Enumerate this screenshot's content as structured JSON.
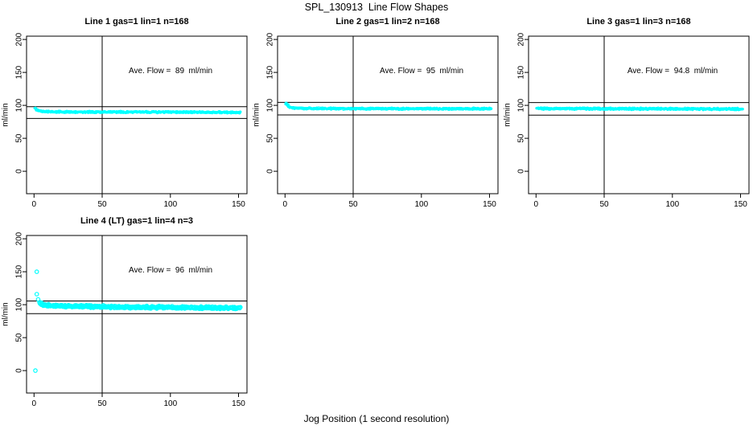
{
  "figure": {
    "title": "SPL_130913  Line Flow Shapes",
    "xlabel": "Jog Position (1 second resolution)",
    "background": "#ffffff",
    "point_color": "#00ffff",
    "axis_color": "#000000"
  },
  "chart_data": [
    {
      "type": "scatter",
      "title": "Line 1 gas=1 lin=1 n=168",
      "annotation": "Ave. Flow =  89  ml/min",
      "ave_flow_ml_min": 89,
      "n_traces": 168,
      "ylabel": "ml/min",
      "xlim": [
        -5.5,
        156.2
      ],
      "ylim": [
        -34,
        205
      ],
      "xticks": [
        0,
        50,
        100,
        150
      ],
      "yticks": [
        0,
        50,
        100,
        150,
        200
      ],
      "vline_x": 50,
      "hlines": [
        97.9,
        80.1
      ],
      "series_trend": [
        [
          1,
          95.5
        ],
        [
          2,
          93.5
        ],
        [
          3,
          92.3
        ],
        [
          5,
          91.3
        ],
        [
          8,
          90.7
        ],
        [
          15,
          90.2
        ],
        [
          40,
          90
        ],
        [
          100,
          89.8
        ],
        [
          151,
          89.3
        ]
      ],
      "band_halfwidth": 1.4,
      "points_per_x": 4,
      "x_range": [
        1,
        151
      ],
      "marker_radius": 1.2,
      "marker_stroke": 0.9,
      "outliers": [],
      "seed": 11
    },
    {
      "type": "scatter",
      "title": "Line 2 gas=1 lin=2 n=168",
      "annotation": "Ave. Flow =  95  ml/min",
      "ave_flow_ml_min": 95,
      "n_traces": 168,
      "ylabel": "ml/min",
      "xlim": [
        -5.5,
        156.2
      ],
      "ylim": [
        -34,
        205
      ],
      "xticks": [
        0,
        50,
        100,
        150
      ],
      "yticks": [
        0,
        50,
        100,
        150,
        200
      ],
      "vline_x": 50,
      "hlines": [
        104.5,
        85.5
      ],
      "series_trend": [
        [
          1,
          103
        ],
        [
          2,
          100.5
        ],
        [
          3,
          98.5
        ],
        [
          4,
          97.3
        ],
        [
          6,
          96.3
        ],
        [
          10,
          95.7
        ],
        [
          20,
          95.3
        ],
        [
          60,
          95
        ],
        [
          151,
          94.8
        ]
      ],
      "band_halfwidth": 1.4,
      "points_per_x": 4,
      "x_range": [
        1,
        151
      ],
      "marker_radius": 1.2,
      "marker_stroke": 0.9,
      "outliers": [],
      "seed": 22
    },
    {
      "type": "scatter",
      "title": "Line 3 gas=1 lin=3 n=168",
      "annotation": "Ave. Flow =  94.8  ml/min",
      "ave_flow_ml_min": 94.8,
      "n_traces": 168,
      "ylabel": "ml/min",
      "xlim": [
        -5.5,
        156.2
      ],
      "ylim": [
        -34,
        205
      ],
      "xticks": [
        0,
        50,
        100,
        150
      ],
      "yticks": [
        0,
        50,
        100,
        150,
        200
      ],
      "vline_x": 50,
      "hlines": [
        104.3,
        85.3
      ],
      "series_trend": [
        [
          1,
          95.2
        ],
        [
          20,
          95
        ],
        [
          80,
          94.8
        ],
        [
          151,
          94.5
        ]
      ],
      "band_halfwidth": 1.6,
      "points_per_x": 4,
      "x_range": [
        1,
        151
      ],
      "marker_radius": 1.2,
      "marker_stroke": 0.9,
      "outliers": [],
      "seed": 33
    },
    {
      "type": "scatter",
      "title": "Line 4 (LT) gas=1 lin=4 n=3",
      "annotation": "Ave. Flow =  96  ml/min",
      "ave_flow_ml_min": 96,
      "n_traces": 3,
      "ylabel": "ml/min",
      "xlim": [
        -5.5,
        156.2
      ],
      "ylim": [
        -34,
        205
      ],
      "xticks": [
        0,
        50,
        100,
        150
      ],
      "yticks": [
        0,
        50,
        100,
        150,
        200
      ],
      "vline_x": 50,
      "hlines": [
        105.6,
        86.4
      ],
      "series_trend": [
        [
          4,
          103.5
        ],
        [
          5,
          101.5
        ],
        [
          6,
          100.3
        ],
        [
          8,
          99.4
        ],
        [
          12,
          98.6
        ],
        [
          20,
          98
        ],
        [
          40,
          97.2
        ],
        [
          80,
          96.2
        ],
        [
          120,
          95.6
        ],
        [
          151,
          95
        ]
      ],
      "band_halfwidth": 2.2,
      "points_per_x": 3,
      "x_range": [
        4,
        151
      ],
      "marker_radius": 2.2,
      "marker_stroke": 1.2,
      "outliers": [
        [
          1,
          0
        ],
        [
          2,
          150
        ],
        [
          2,
          116
        ],
        [
          3,
          108
        ]
      ],
      "seed": 44
    }
  ]
}
